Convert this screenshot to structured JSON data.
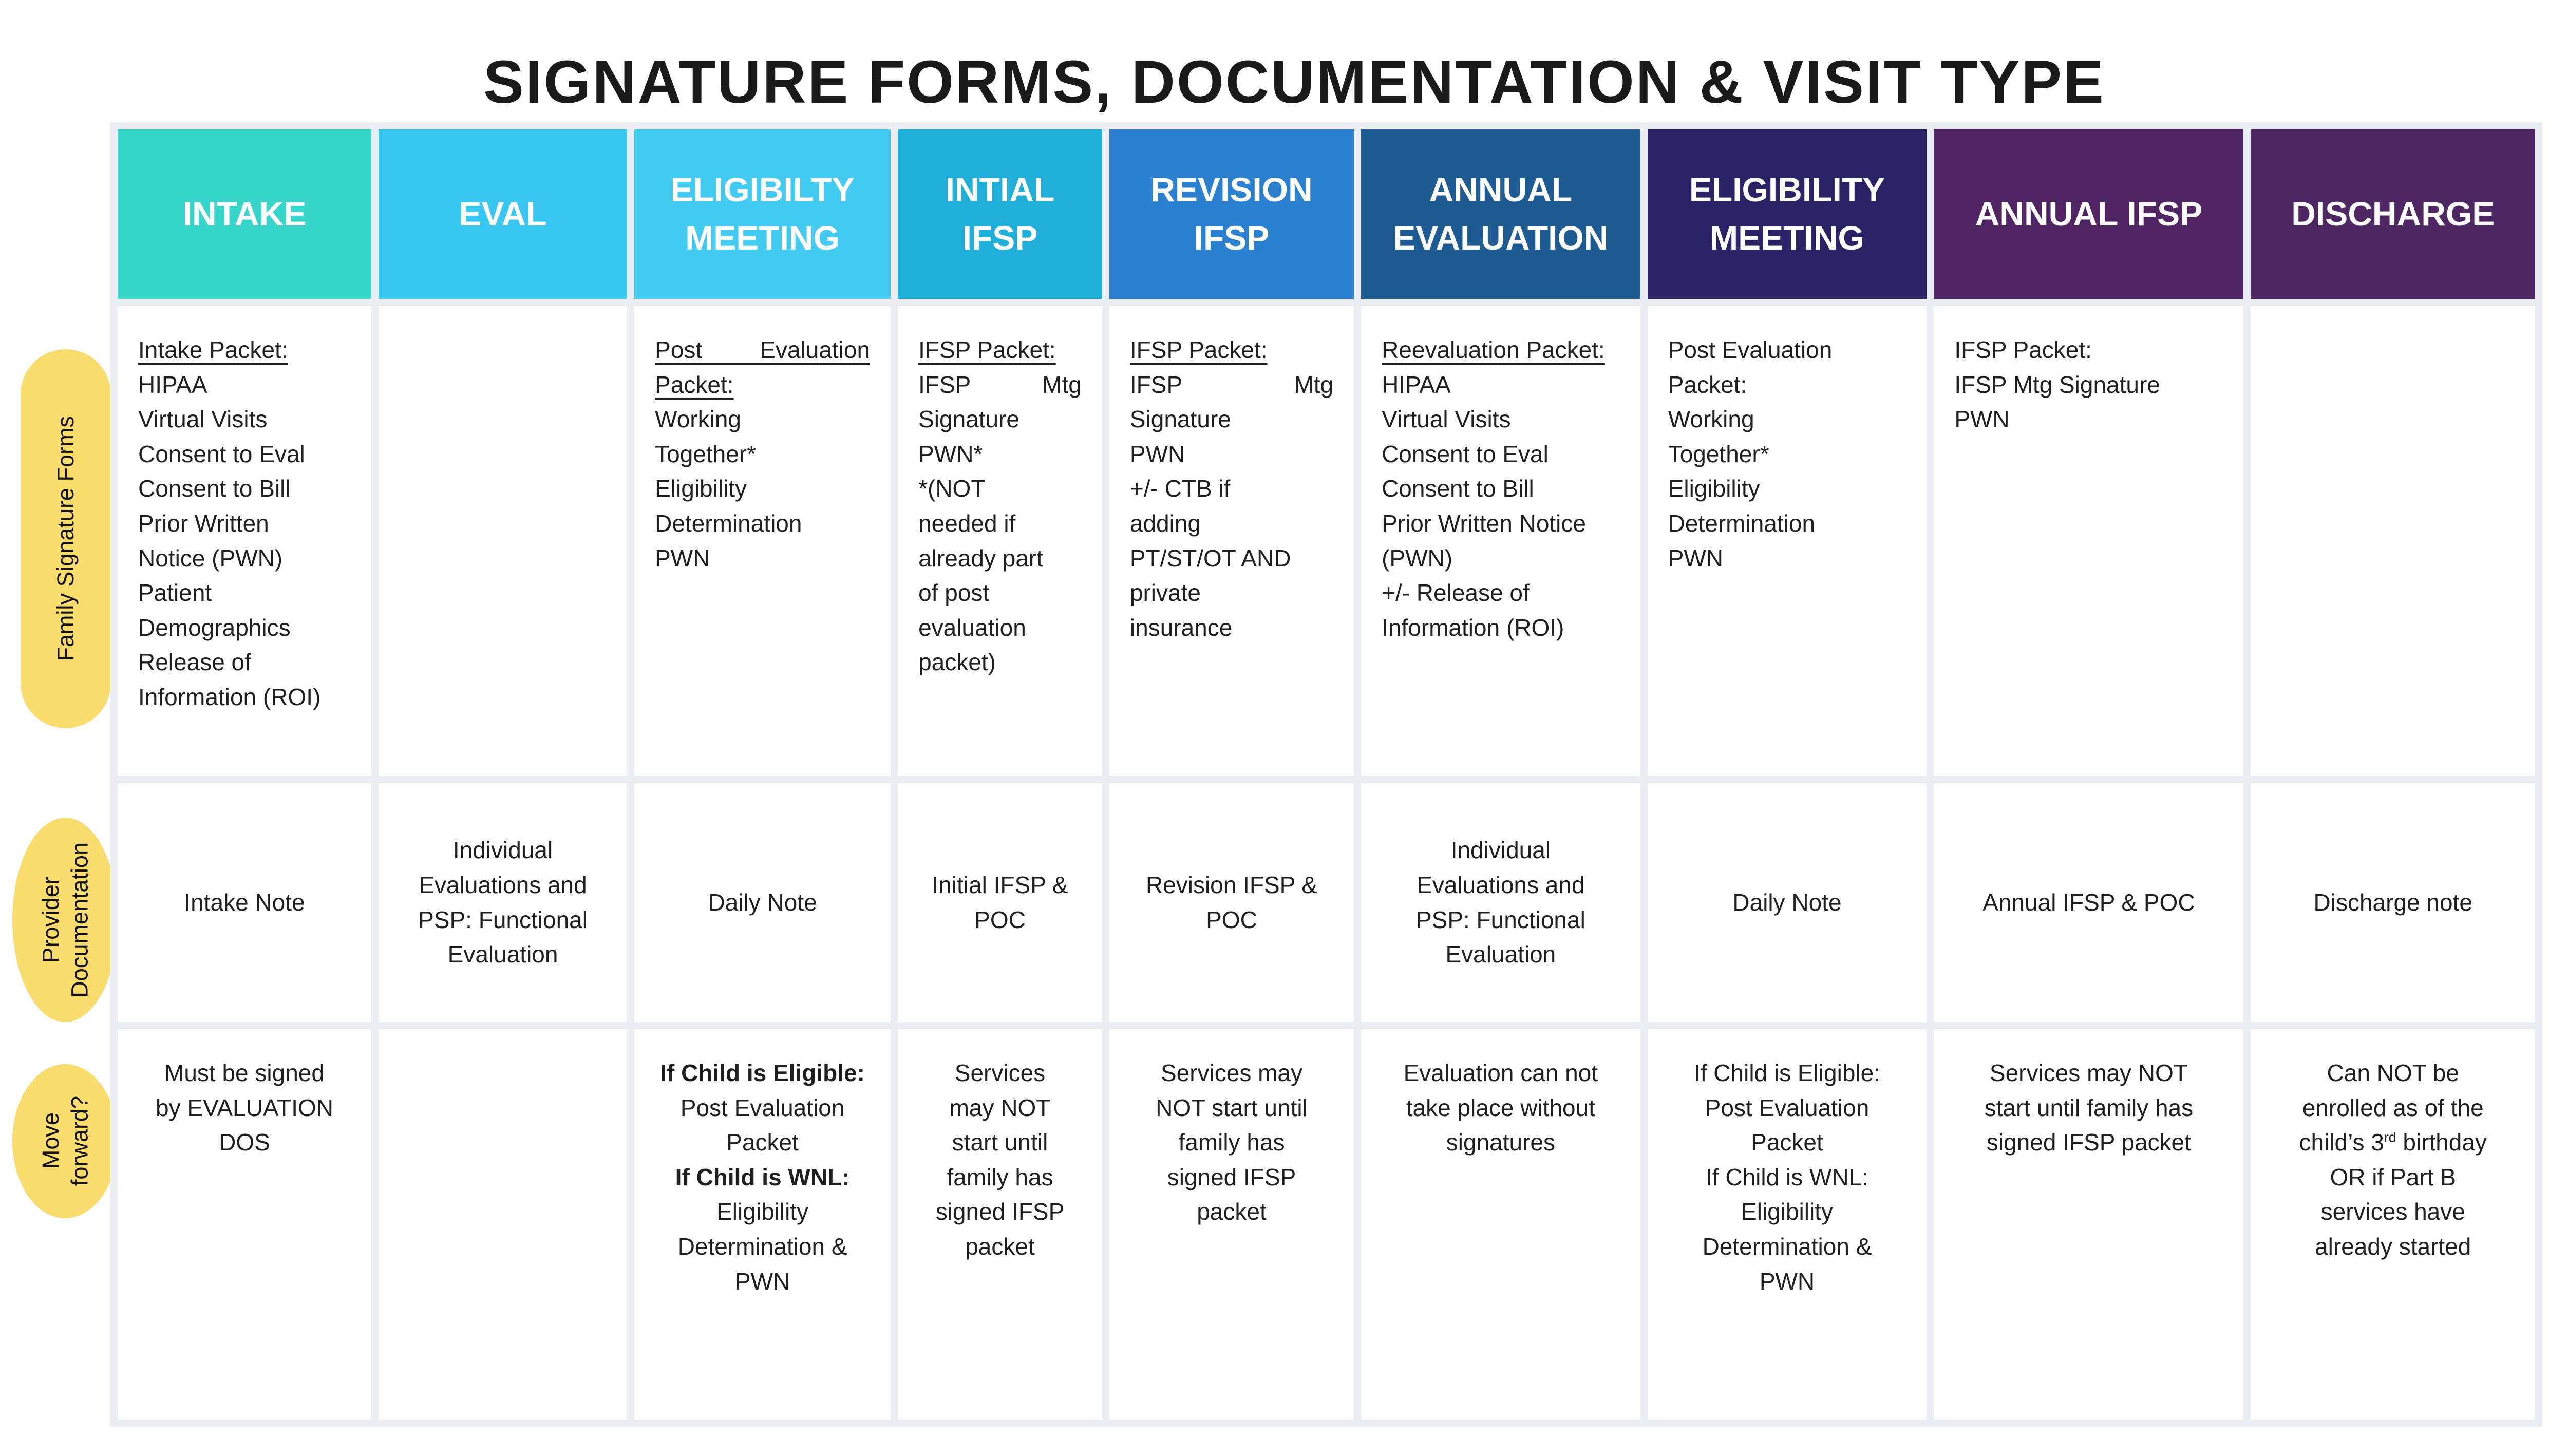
{
  "title": "SIGNATURE FORMS, DOCUMENTATION & VISIT TYPE",
  "colors": {
    "grid_background": "#EAEEF2",
    "label_yellow": "#F9DC6E",
    "intake": "#38D5CB",
    "eval": "#38C7F0",
    "eligibility_meeting_1": "#44CBF2",
    "initial_ifsp": "#1FAED8",
    "revision_ifsp": "#2B80D0",
    "annual_evaluation": "#1F5C94",
    "eligibility_meeting_2": "#2A2366",
    "annual_ifsp": "#512563",
    "discharge": "#4F2763"
  },
  "row_labels": {
    "family": "Family Signature Forms",
    "provider": "Provider\nDocumentation",
    "move": "Move\nforward?"
  },
  "headers": [
    {
      "label": "INTAKE",
      "color": "#38D5CB"
    },
    {
      "label": "EVAL",
      "color": "#38C7F0"
    },
    {
      "label": "ELIGIBILTY MEETING",
      "color": "#44CBF2"
    },
    {
      "label": "INTIAL IFSP",
      "color": "#1FAED8"
    },
    {
      "label": "REVISION IFSP",
      "color": "#2B80D0"
    },
    {
      "label": "ANNUAL EVALUATION",
      "color": "#1F5C94"
    },
    {
      "label": "ELIGIBILITY MEETING",
      "color": "#2A2366"
    },
    {
      "label": "ANNUAL IFSP",
      "color": "#512563"
    },
    {
      "label": "DISCHARGE",
      "color": "#4F2763"
    }
  ],
  "family_row": {
    "intake_heading": "Intake Packet: ",
    "intake_body": "HIPAA\nVirtual Visits\nConsent to Eval\nConsent to Bill\nPrior Written\nNotice (PWN)\nPatient\nDemographics\nRelease of\nInformation (ROI)",
    "elig1_heading": "Post Evaluation Packet:",
    "elig1_body": "Working\nTogether*\nEligibility\nDetermination\nPWN",
    "initial_heading": "IFSP Packet: ",
    "initial_spread": "IFSP Mtg",
    "initial_body": "Signature\nPWN*\n*(NOT\nneeded if\nalready part\nof post\nevaluation\npacket)",
    "revision_heading": "IFSP Packet: ",
    "revision_spread": "IFSP Mtg",
    "revision_body": "Signature\nPWN\n+/- CTB if\nadding\nPT/ST/OT AND\nprivate\ninsurance",
    "annual_eval_heading": "Reevaluation Packet: ",
    "annual_eval_body": "HIPAA\nVirtual Visits\nConsent to Eval\nConsent to Bill\nPrior Written Notice\n(PWN)\n+/- Release of\nInformation (ROI)",
    "elig2_body": "Post Evaluation\nPacket:\nWorking\nTogether*\nEligibility\nDetermination\nPWN",
    "annual_ifsp_body": "IFSP Packet:\nIFSP Mtg Signature\nPWN"
  },
  "provider_row": {
    "intake": "Intake Note",
    "eval": "Individual\nEvaluations and\nPSP: Functional\nEvaluation",
    "elig1": "Daily Note",
    "initial": "Initial IFSP &\nPOC",
    "revision": "Revision IFSP &\nPOC",
    "annual_eval": "Individual\nEvaluations and\nPSP: Functional\nEvaluation",
    "elig2": "Daily Note",
    "annual_ifsp": "Annual IFSP & POC",
    "discharge": "Discharge note"
  },
  "move_row": {
    "intake": "Must be signed\nby EVALUATION\nDOS",
    "elig_bold1": "If Child is Eligible:",
    "elig_text1": "Post Evaluation\nPacket",
    "elig_bold2": "If Child is WNL:",
    "elig_text2": "Eligibility\nDetermination &\nPWN",
    "initial": "Services\nmay NOT\nstart until\nfamily has\nsigned IFSP\npacket",
    "revision": "Services may\nNOT start until\nfamily has\nsigned IFSP\npacket",
    "annual_eval": "Evaluation can not\ntake place without\nsignatures",
    "annual_ifsp": "Services may NOT\nstart until family has\nsigned IFSP packet",
    "discharge_pre": "Can NOT be\nenrolled as of the\nchild’s 3",
    "discharge_sup": "rd",
    "discharge_post": " birthday\nOR if Part B\nservices have\nalready started"
  }
}
